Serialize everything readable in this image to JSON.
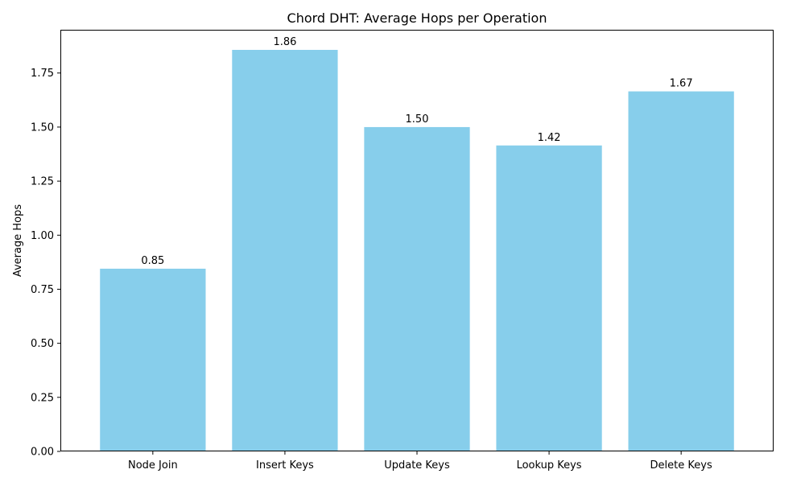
{
  "chart_data": {
    "type": "bar",
    "title": "Chord DHT: Average Hops per Operation",
    "xlabel": "",
    "ylabel": "Average Hops",
    "categories": [
      "Node Join",
      "Insert Keys",
      "Update Keys",
      "Lookup Keys",
      "Delete Keys"
    ],
    "values": [
      0.845,
      1.857,
      1.5,
      1.415,
      1.665
    ],
    "data_labels": [
      "0.85",
      "1.86",
      "1.50",
      "1.42",
      "1.67"
    ],
    "ylim": [
      0,
      1.95
    ],
    "yticks": [
      0,
      0.25,
      0.5,
      0.75,
      1.0,
      1.25,
      1.5,
      1.75
    ],
    "ytick_labels": [
      "0.00",
      "0.25",
      "0.50",
      "0.75",
      "1.00",
      "1.25",
      "1.50",
      "1.75"
    ],
    "bar_color": "#87ceeb",
    "grid": false,
    "legend": "none"
  }
}
